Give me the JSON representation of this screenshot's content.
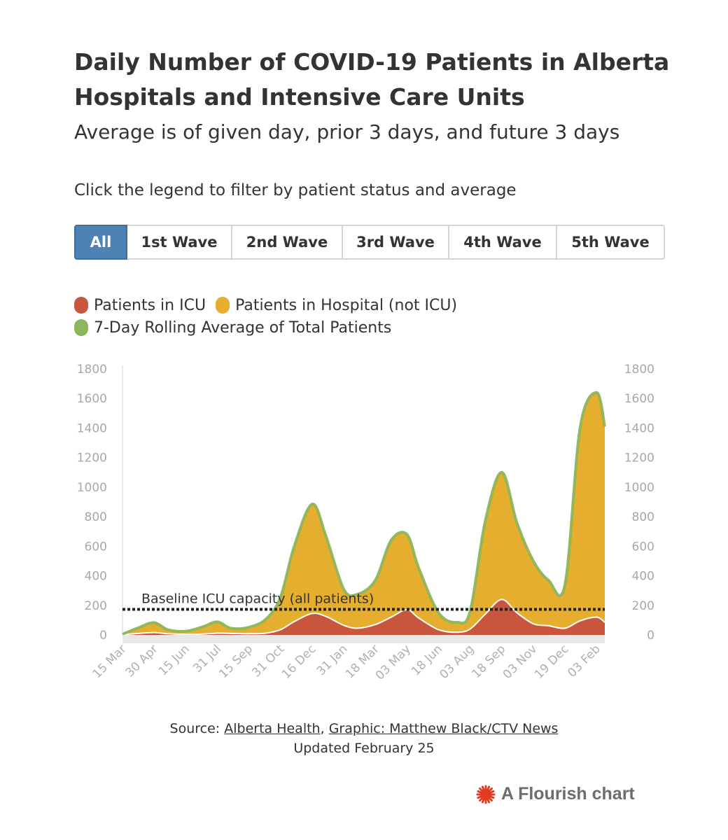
{
  "title": "Daily Number of COVID-19 Patients in Alberta Hospitals and Intensive Care Units",
  "subtitle": "Average is of given day, prior 3 days, and future 3 days",
  "note": "Click the legend to filter by patient status and average",
  "buttons": [
    {
      "label": "All",
      "active": true
    },
    {
      "label": "1st Wave",
      "active": false
    },
    {
      "label": "2nd Wave",
      "active": false
    },
    {
      "label": "3rd Wave",
      "active": false
    },
    {
      "label": "4th Wave",
      "active": false
    },
    {
      "label": "5th Wave",
      "active": false
    }
  ],
  "legend": {
    "icu": "Patients in ICU",
    "hospital": "Patients in Hospital (not ICU)",
    "rolling": "7-Day Rolling Average of Total Patients"
  },
  "colors": {
    "icu": "#c8553d",
    "hospital": "#e5ae2e",
    "rolling": "#8bb65b",
    "baseline": "#222222",
    "accent_button": "#4d83b4",
    "flourish_logo": "#e23b24"
  },
  "source": {
    "prefix": "Source: ",
    "link1": "Alberta Health",
    "separator": ", ",
    "link2": "Graphic: Matthew Black/CTV News"
  },
  "updated": "Updated February 25",
  "branding": "A Flourish chart",
  "chart_data": {
    "type": "area",
    "xlabel": "",
    "ylabel": "",
    "ylim": [
      0,
      1800
    ],
    "yticks": [
      0,
      200,
      400,
      600,
      800,
      1000,
      1200,
      1400,
      1600,
      1800
    ],
    "y_axis_both_sides": true,
    "grid": false,
    "legend_position": "top-left",
    "x_ticks": [
      "15 Mar",
      "30 Apr",
      "15 Jun",
      "31 Jul",
      "15 Sep",
      "31 Oct",
      "16 Dec",
      "31 Jan",
      "18 Mar",
      "03 May",
      "18 Jun",
      "03 Aug",
      "18 Sep",
      "03 Nov",
      "19 Dec",
      "03 Feb"
    ],
    "x_tick_dates": [
      "2020-03-15",
      "2020-04-30",
      "2020-06-15",
      "2020-07-31",
      "2020-09-15",
      "2020-10-31",
      "2020-12-16",
      "2021-01-31",
      "2021-03-18",
      "2021-05-03",
      "2021-06-18",
      "2021-08-03",
      "2021-09-18",
      "2021-11-03",
      "2021-12-19",
      "2022-02-03"
    ],
    "baseline": {
      "label": "Baseline ICU capacity (all patients)",
      "value": 173
    },
    "series": [
      {
        "name": "Patients in ICU",
        "x": [
          "2020-03-15",
          "2020-04-08",
          "2020-04-30",
          "2020-05-20",
          "2020-06-15",
          "2020-07-10",
          "2020-07-31",
          "2020-08-20",
          "2020-09-15",
          "2020-10-10",
          "2020-10-31",
          "2020-11-20",
          "2020-12-16",
          "2021-01-05",
          "2021-01-31",
          "2021-02-20",
          "2021-03-18",
          "2021-04-10",
          "2021-05-03",
          "2021-05-20",
          "2021-06-18",
          "2021-07-15",
          "2021-08-03",
          "2021-08-25",
          "2021-09-18",
          "2021-10-10",
          "2021-11-03",
          "2021-11-25",
          "2021-12-19",
          "2022-01-10",
          "2022-02-03",
          "2022-02-15"
        ],
        "values": [
          2,
          10,
          16,
          8,
          4,
          6,
          12,
          10,
          8,
          12,
          35,
          90,
          145,
          125,
          65,
          45,
          70,
          120,
          170,
          115,
          35,
          18,
          40,
          140,
          240,
          150,
          75,
          62,
          45,
          95,
          120,
          85
        ]
      },
      {
        "name": "Patients in Hospital (not ICU)",
        "x": [
          "2020-03-15",
          "2020-04-08",
          "2020-04-30",
          "2020-05-20",
          "2020-06-15",
          "2020-07-10",
          "2020-07-31",
          "2020-08-20",
          "2020-09-15",
          "2020-10-10",
          "2020-10-31",
          "2020-11-20",
          "2020-12-16",
          "2021-01-05",
          "2021-01-31",
          "2021-02-20",
          "2021-03-18",
          "2021-04-10",
          "2021-05-03",
          "2021-05-20",
          "2021-06-18",
          "2021-07-15",
          "2021-08-03",
          "2021-08-25",
          "2021-09-18",
          "2021-10-10",
          "2021-11-03",
          "2021-11-25",
          "2021-12-19",
          "2022-01-10",
          "2022-02-03",
          "2022-02-15"
        ],
        "values": [
          3,
          40,
          69,
          27,
          21,
          49,
          78,
          35,
          44,
          98,
          225,
          510,
          745,
          545,
          245,
          230,
          300,
          520,
          510,
          340,
          115,
          67,
          120,
          630,
          860,
          610,
          425,
          308,
          295,
          1305,
          1520,
          1325
        ]
      },
      {
        "name": "7-Day Rolling Average of Total Patients",
        "x": [
          "2020-03-15",
          "2020-04-08",
          "2020-04-30",
          "2020-05-20",
          "2020-06-15",
          "2020-07-10",
          "2020-07-31",
          "2020-08-20",
          "2020-09-15",
          "2020-10-10",
          "2020-10-31",
          "2020-11-20",
          "2020-12-16",
          "2021-01-05",
          "2021-01-31",
          "2021-02-20",
          "2021-03-18",
          "2021-04-10",
          "2021-05-03",
          "2021-05-20",
          "2021-06-18",
          "2021-07-15",
          "2021-08-03",
          "2021-08-25",
          "2021-09-18",
          "2021-10-10",
          "2021-11-03",
          "2021-11-25",
          "2021-12-19",
          "2022-01-10",
          "2022-02-03",
          "2022-02-15"
        ],
        "values": [
          5,
          50,
          83,
          35,
          25,
          55,
          88,
          45,
          52,
          108,
          255,
          600,
          885,
          670,
          310,
          275,
          370,
          640,
          680,
          455,
          150,
          85,
          160,
          770,
          1100,
          760,
          500,
          370,
          340,
          1400,
          1640,
          1410
        ]
      }
    ]
  }
}
